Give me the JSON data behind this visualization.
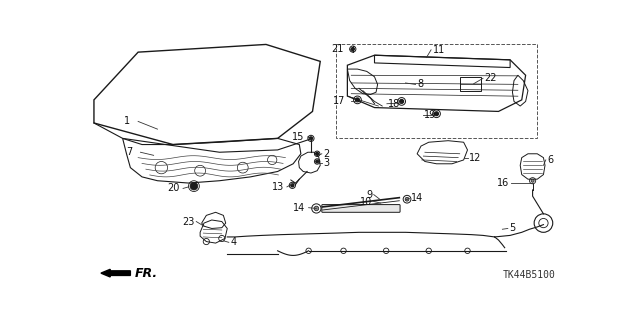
{
  "background_color": "#ffffff",
  "part_number": "TK44B5100",
  "line_color": "#1a1a1a",
  "lw": 0.9
}
